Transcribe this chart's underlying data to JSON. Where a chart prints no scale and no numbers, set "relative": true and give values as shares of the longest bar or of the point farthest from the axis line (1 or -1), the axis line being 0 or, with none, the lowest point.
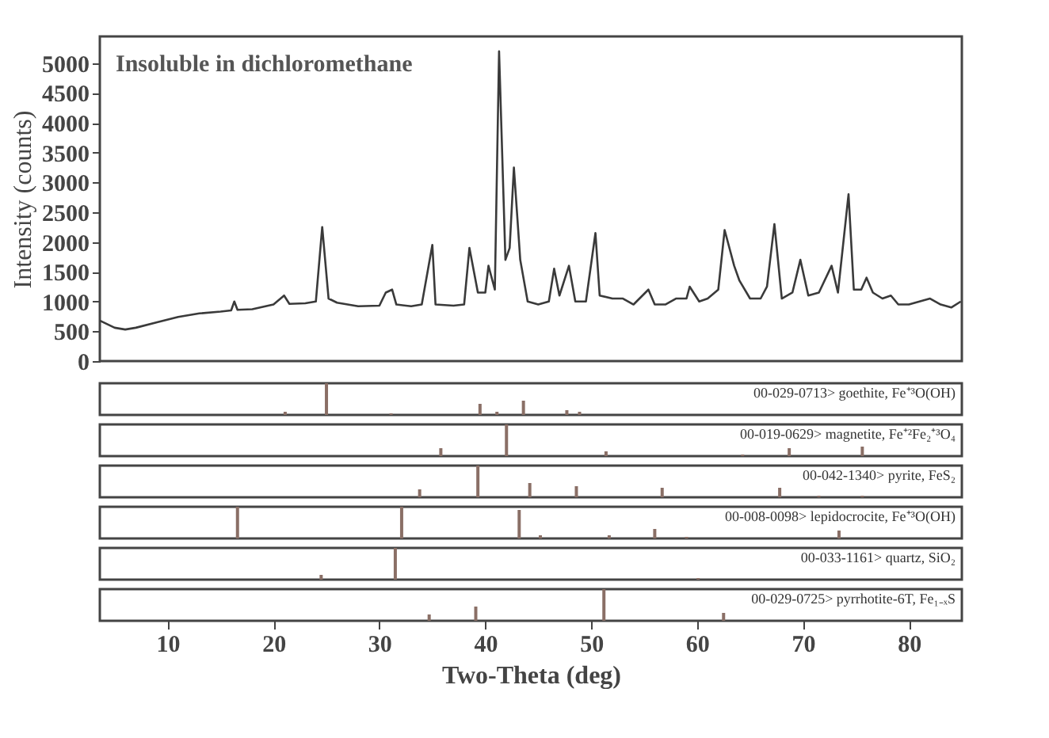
{
  "chart_data": [
    {
      "type": "line",
      "color": "#3a3a3a",
      "ylabel": "Intensity (counts)",
      "annotations": [
        "Insoluble in dichloromethane"
      ],
      "xlim": [
        3.6,
        85
      ],
      "ylim": [
        0,
        5450
      ],
      "yticks": [
        0,
        500,
        1000,
        1500,
        2000,
        2500,
        3000,
        3500,
        4000,
        4500,
        5000
      ],
      "tick_labels": "y",
      "grid": false,
      "x": [
        3.6,
        5,
        6,
        7,
        9,
        11,
        13,
        15,
        16,
        16.3,
        16.6,
        18,
        20,
        21,
        21.5,
        23,
        24,
        24.6,
        25.2,
        26,
        28,
        30,
        30.6,
        31.2,
        31.6,
        33,
        34,
        35,
        35.3,
        37,
        38,
        38.5,
        39.3,
        40,
        40.3,
        40.9,
        41.3,
        41.9,
        42.3,
        42.7,
        43.3,
        44,
        45,
        46,
        46.5,
        47,
        47.9,
        48.5,
        49.5,
        50.4,
        50.8,
        52,
        53,
        54,
        55.4,
        56,
        57,
        58,
        59,
        59.3,
        60.2,
        61,
        62,
        62.6,
        63.5,
        64,
        65,
        66,
        66.6,
        67.3,
        68,
        69,
        69.75,
        70.5,
        71.5,
        72.7,
        73.3,
        74.3,
        74.8,
        75.5,
        76,
        76.6,
        77.5,
        78.3,
        79,
        80,
        81,
        82,
        83,
        84,
        84.9
      ],
      "values": [
        680,
        560,
        530,
        560,
        650,
        740,
        800,
        830,
        850,
        1000,
        860,
        870,
        950,
        1100,
        960,
        970,
        1000,
        2250,
        1050,
        980,
        920,
        930,
        1150,
        1200,
        950,
        920,
        950,
        1950,
        950,
        930,
        950,
        1900,
        1150,
        1150,
        1600,
        1200,
        5200,
        1700,
        1900,
        3250,
        1700,
        1000,
        950,
        1000,
        1550,
        1100,
        1600,
        1000,
        1000,
        2150,
        1100,
        1050,
        1050,
        950,
        1200,
        950,
        950,
        1050,
        1050,
        1250,
        1000,
        1050,
        1200,
        2200,
        1600,
        1350,
        1050,
        1050,
        1250,
        2300,
        1050,
        1150,
        1700,
        1100,
        1150,
        1600,
        1150,
        2800,
        1200,
        1200,
        1400,
        1150,
        1050,
        1100,
        950,
        950,
        1000,
        1050,
        950,
        900,
        1000
      ]
    },
    {
      "type": "bar",
      "relative": true,
      "color": "#8a6f66",
      "annotations": [
        "00-029-0713> goethite, Fe⁺³O(OH)"
      ],
      "xlim": [
        3.6,
        85
      ],
      "tick_labels": false,
      "x": [
        21.1,
        25.0,
        31.1,
        39.5,
        41.1,
        43.6,
        47.7,
        48.9
      ],
      "values": [
        0.1,
        1,
        0.05,
        0.35,
        0.1,
        0.45,
        0.15,
        0.1
      ]
    },
    {
      "type": "bar",
      "relative": true,
      "color": "#8a6f66",
      "annotations": [
        "00-019-0629> magnetite, Fe⁺²Fe₂⁺³O₄"
      ],
      "xlim": [
        3.6,
        85
      ],
      "tick_labels": false,
      "x": [
        35.8,
        42.0,
        51.4,
        64.3,
        68.7,
        75.6
      ],
      "values": [
        0.25,
        1,
        0.15,
        0.05,
        0.25,
        0.3
      ]
    },
    {
      "type": "bar",
      "relative": true,
      "color": "#8a6f66",
      "annotations": [
        "00-042-1340> pyrite, FeS₂"
      ],
      "xlim": [
        3.6,
        85
      ],
      "tick_labels": false,
      "x": [
        33.8,
        39.3,
        44.2,
        48.6,
        56.7,
        67.8,
        71.5,
        75.6
      ],
      "values": [
        0.25,
        1,
        0.45,
        0.35,
        0.3,
        0.3,
        0.05,
        0.05
      ]
    },
    {
      "type": "bar",
      "relative": true,
      "color": "#8a6f66",
      "annotations": [
        "00-008-0098> lepidocrocite, Fe⁺³O(OH)"
      ],
      "xlim": [
        3.6,
        85
      ],
      "tick_labels": false,
      "x": [
        16.6,
        32.1,
        43.2,
        45.2,
        51.7,
        56.0,
        59.0,
        73.4
      ],
      "values": [
        1,
        1,
        0.9,
        0.1,
        0.1,
        0.3,
        0.05,
        0.25
      ]
    },
    {
      "type": "bar",
      "relative": true,
      "color": "#8a6f66",
      "annotations": [
        "00-033-1161> quartz, SiO₂"
      ],
      "xlim": [
        3.6,
        85
      ],
      "tick_labels": false,
      "x": [
        24.5,
        31.5,
        60.1
      ],
      "values": [
        0.15,
        1,
        0.05
      ]
    },
    {
      "type": "bar",
      "relative": true,
      "color": "#8a6f66",
      "annotations": [
        "00-029-0725> pyrrhotite-6T, Fe₁₋ₓS"
      ],
      "xlim": [
        3.6,
        85
      ],
      "tick_labels": "x",
      "xlabel": "Two-Theta (deg)",
      "xticks": [
        10,
        20,
        30,
        40,
        50,
        60,
        70,
        80
      ],
      "x": [
        34.7,
        39.1,
        51.2,
        62.5
      ],
      "values": [
        0.2,
        0.45,
        1,
        0.25
      ]
    }
  ]
}
